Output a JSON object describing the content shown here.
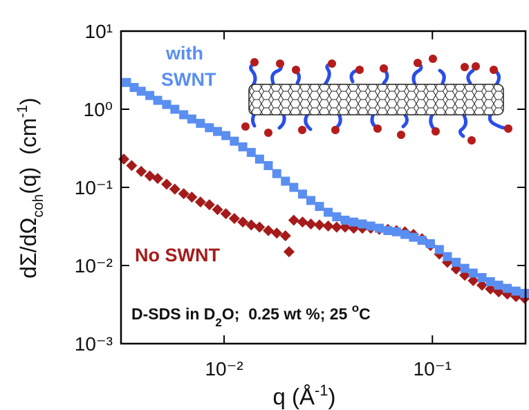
{
  "chart_data": {
    "type": "scatter",
    "y_label": {
      "main": "dΣ/dΩ",
      "sub": "coh",
      "rest": "(q)  (cm",
      "sup": "-1",
      "end": ")"
    },
    "x_label": {
      "main": "q (Å",
      "sup": "-1",
      "end": ")"
    },
    "annotations": {
      "with_swnt": [
        "with",
        "SWNT"
      ],
      "no_swnt": "No SWNT",
      "conditions": {
        "a": "D-SDS in D",
        "sub": "2",
        "b": "O;  0.25 wt %; 25 ",
        "sup": "o",
        "c": "C"
      }
    },
    "xscale": "log",
    "yscale": "log",
    "xlim": [
      0.0032,
      0.28
    ],
    "ylim": [
      0.001,
      10
    ],
    "xticks": [
      {
        "value": 0.01,
        "label": "10⁻²"
      },
      {
        "value": 0.1,
        "label": "10⁻¹"
      }
    ],
    "yticks": [
      {
        "value": 0.001,
        "label": "10⁻³"
      },
      {
        "value": 0.01,
        "label": "10⁻²"
      },
      {
        "value": 0.1,
        "label": "10⁻¹"
      },
      {
        "value": 1,
        "label": "10⁰"
      },
      {
        "value": 10,
        "label": "10¹"
      }
    ],
    "series": [
      {
        "color": "#a51b1b",
        "marker": "diamond",
        "x": [
          0.0033,
          0.0036,
          0.004,
          0.0044,
          0.0048,
          0.0053,
          0.0058,
          0.0064,
          0.007,
          0.0077,
          0.0085,
          0.0093,
          0.0102,
          0.0112,
          0.0123,
          0.0135,
          0.0148,
          0.0163,
          0.0179,
          0.0197,
          0.0205,
          0.0216,
          0.0238,
          0.0261,
          0.0287,
          0.0316,
          0.0347,
          0.0381,
          0.0419,
          0.0461,
          0.0506,
          0.0556,
          0.0611,
          0.0672,
          0.0738,
          0.0811,
          0.0891,
          0.0979,
          0.108,
          0.118,
          0.13,
          0.143,
          0.157,
          0.173,
          0.19,
          0.208,
          0.229,
          0.252,
          0.277
        ],
        "values": [
          0.23,
          0.19,
          0.16,
          0.14,
          0.13,
          0.11,
          0.095,
          0.083,
          0.075,
          0.065,
          0.06,
          0.052,
          0.046,
          0.04,
          0.036,
          0.033,
          0.031,
          0.028,
          0.026,
          0.024,
          0.015,
          0.038,
          0.036,
          0.034,
          0.033,
          0.032,
          0.031,
          0.031,
          0.03,
          0.03,
          0.03,
          0.029,
          0.029,
          0.028,
          0.027,
          0.025,
          0.022,
          0.018,
          0.014,
          0.011,
          0.009,
          0.0075,
          0.0064,
          0.0056,
          0.005,
          0.0046,
          0.0043,
          0.004,
          0.0038
        ]
      },
      {
        "color": "#5a8ef0",
        "marker": "square",
        "x": [
          0.0034,
          0.0037,
          0.004,
          0.0044,
          0.0048,
          0.0053,
          0.0058,
          0.0064,
          0.007,
          0.0077,
          0.0085,
          0.0093,
          0.0102,
          0.0112,
          0.0123,
          0.0135,
          0.0148,
          0.0163,
          0.0179,
          0.0197,
          0.0216,
          0.0238,
          0.0261,
          0.0287,
          0.0316,
          0.0347,
          0.0381,
          0.0419,
          0.0461,
          0.0506,
          0.0556,
          0.0611,
          0.0672,
          0.0738,
          0.0811,
          0.0891,
          0.0979,
          0.108,
          0.118,
          0.13,
          0.143,
          0.157,
          0.173,
          0.19,
          0.208,
          0.229,
          0.252,
          0.277
        ],
        "values": [
          2.2,
          1.9,
          1.7,
          1.5,
          1.3,
          1.15,
          1.0,
          0.85,
          0.75,
          0.66,
          0.58,
          0.52,
          0.46,
          0.39,
          0.33,
          0.28,
          0.23,
          0.19,
          0.15,
          0.12,
          0.1,
          0.082,
          0.068,
          0.057,
          0.048,
          0.042,
          0.038,
          0.036,
          0.034,
          0.032,
          0.03,
          0.028,
          0.027,
          0.025,
          0.023,
          0.021,
          0.019,
          0.016,
          0.013,
          0.011,
          0.0092,
          0.008,
          0.007,
          0.0062,
          0.0056,
          0.0051,
          0.0047,
          0.0044
        ]
      }
    ]
  }
}
